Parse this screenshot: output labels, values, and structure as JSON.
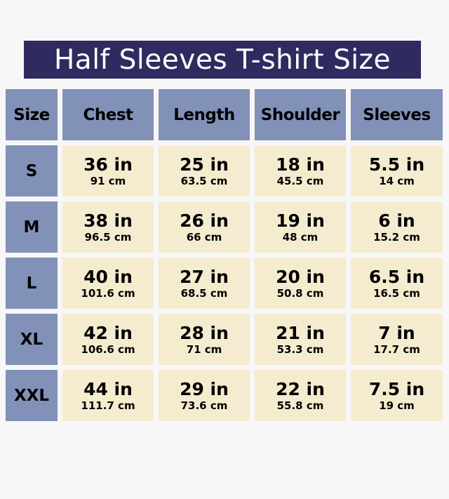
{
  "title": "Half Sleeves T-shirt Size",
  "colors": {
    "title_bg": "#2f2b60",
    "header_bg": "#8291b8",
    "cell_bg": "#f5ecd0"
  },
  "headers": [
    "Size",
    "Chest",
    "Length",
    "Shoulder",
    "Sleeves"
  ],
  "rows": [
    {
      "size": "S",
      "cells": [
        {
          "in": "36 in",
          "cm": "91 cm"
        },
        {
          "in": "25 in",
          "cm": "63.5 cm"
        },
        {
          "in": "18 in",
          "cm": "45.5 cm"
        },
        {
          "in": "5.5 in",
          "cm": "14 cm"
        }
      ]
    },
    {
      "size": "M",
      "cells": [
        {
          "in": "38 in",
          "cm": "96.5 cm"
        },
        {
          "in": "26 in",
          "cm": "66 cm"
        },
        {
          "in": "19 in",
          "cm": "48 cm"
        },
        {
          "in": "6 in",
          "cm": "15.2 cm"
        }
      ]
    },
    {
      "size": "L",
      "cells": [
        {
          "in": "40 in",
          "cm": "101.6 cm"
        },
        {
          "in": "27 in",
          "cm": "68.5 cm"
        },
        {
          "in": "20 in",
          "cm": "50.8 cm"
        },
        {
          "in": "6.5 in",
          "cm": "16.5 cm"
        }
      ]
    },
    {
      "size": "XL",
      "cells": [
        {
          "in": "42 in",
          "cm": "106.6 cm"
        },
        {
          "in": "28 in",
          "cm": "71 cm"
        },
        {
          "in": "21 in",
          "cm": "53.3 cm"
        },
        {
          "in": "7 in",
          "cm": "17.7 cm"
        }
      ]
    },
    {
      "size": "XXL",
      "cells": [
        {
          "in": "44 in",
          "cm": "111.7 cm"
        },
        {
          "in": "29 in",
          "cm": "73.6 cm"
        },
        {
          "in": "22 in",
          "cm": "55.8 cm"
        },
        {
          "in": "7.5 in",
          "cm": "19 cm"
        }
      ]
    }
  ]
}
